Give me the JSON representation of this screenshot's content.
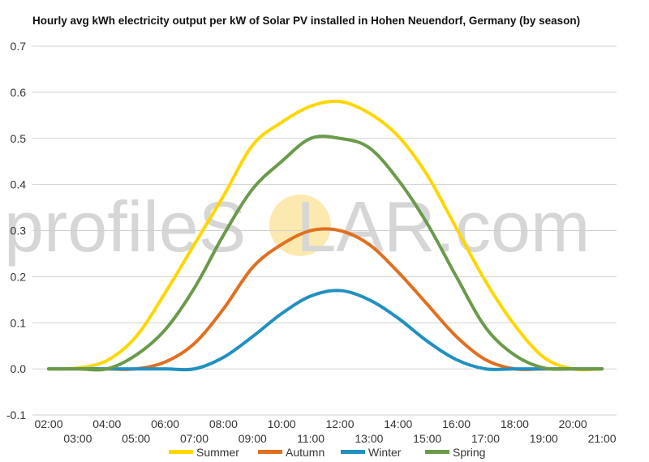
{
  "chart_data": {
    "type": "line",
    "title": "Hourly avg kWh electricity output per kW of Solar PV installed in Hohen Neuendorf, Germany (by season)",
    "xlabel": "",
    "ylabel": "",
    "ylim": [
      -0.1,
      0.7
    ],
    "xlim": [
      2,
      21
    ],
    "yticks": [
      "-0.1",
      "0.0",
      "0.1",
      "0.2",
      "0.3",
      "0.4",
      "0.5",
      "0.6",
      "0.7"
    ],
    "xticks": [
      "02:00",
      "03:00",
      "04:00",
      "05:00",
      "06:00",
      "07:00",
      "08:00",
      "09:00",
      "10:00",
      "11:00",
      "12:00",
      "13:00",
      "14:00",
      "15:00",
      "16:00",
      "17:00",
      "18:00",
      "19:00",
      "20:00",
      "21:00"
    ],
    "grid": true,
    "legend_position": "bottom",
    "x": [
      2,
      3,
      4,
      5,
      6,
      7,
      8,
      9,
      10,
      11,
      12,
      13,
      14,
      15,
      16,
      17,
      18,
      19,
      20,
      21
    ],
    "series": [
      {
        "name": "Summer",
        "color": "#FFD700",
        "values": [
          0.0,
          0.002,
          0.018,
          0.07,
          0.165,
          0.27,
          0.375,
          0.485,
          0.535,
          0.57,
          0.58,
          0.555,
          0.505,
          0.42,
          0.305,
          0.19,
          0.095,
          0.025,
          0.0,
          0.0
        ]
      },
      {
        "name": "Autumn",
        "color": "#E07020",
        "values": [
          0.0,
          0.0,
          0.0,
          0.0,
          0.015,
          0.055,
          0.13,
          0.22,
          0.27,
          0.3,
          0.3,
          0.27,
          0.21,
          0.14,
          0.07,
          0.02,
          0.0,
          0.0,
          0.0,
          0.0
        ]
      },
      {
        "name": "Winter",
        "color": "#2090C0",
        "values": [
          0.0,
          0.0,
          0.0,
          0.0,
          0.0,
          0.0,
          0.025,
          0.07,
          0.12,
          0.158,
          0.17,
          0.15,
          0.11,
          0.06,
          0.02,
          0.0,
          0.0,
          0.0,
          0.0,
          0.0
        ]
      },
      {
        "name": "Spring",
        "color": "#6A9A4A",
        "values": [
          0.0,
          0.0,
          0.0,
          0.03,
          0.085,
          0.175,
          0.29,
          0.39,
          0.45,
          0.5,
          0.5,
          0.48,
          0.41,
          0.315,
          0.2,
          0.09,
          0.03,
          0.002,
          0.0,
          0.0
        ]
      }
    ],
    "watermark": {
      "prefix": "profileS",
      "suffix": "LAR.com",
      "sun_color": "#FCE9B0"
    }
  }
}
